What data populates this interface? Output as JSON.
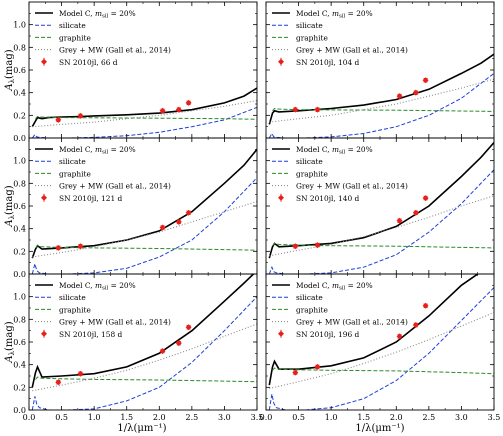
{
  "figure": {
    "xlabel": "1/λ(μm⁻¹)",
    "ylabel": "A",
    "ylabel_sub": "λ",
    "ylabel_unit": "(mag)",
    "xticks": [
      "0.0",
      "0.5",
      "1.0",
      "1.5",
      "2.0",
      "2.5",
      "3.0",
      "3.5"
    ],
    "yticks": [
      "0.0",
      "0.2",
      "0.4",
      "0.6",
      "0.8",
      "1.0"
    ],
    "legend": {
      "model": "Model C, ",
      "model_m": "m",
      "model_sub": "sil",
      "model_tail": " = 20%",
      "silicate": "silicate",
      "graphite": "graphite",
      "grey": "Grey + MW (Gall et al., 2014)"
    },
    "colors": {
      "model": "#000000",
      "silicate": "#1f3fd8",
      "graphite": "#2a8a2a",
      "grey": "#8a8a8a",
      "data": "#e8201a"
    }
  },
  "chart_data": [
    {
      "type": "line",
      "epoch_label": "SN 2010jl, 66 d",
      "xlim": [
        0,
        3.5
      ],
      "ylim": [
        0,
        1.2
      ],
      "series": [
        {
          "name": "Model C, m_sil = 20%",
          "x": [
            0.05,
            0.1,
            0.13,
            0.2,
            0.3,
            0.5,
            0.8,
            1.0,
            1.5,
            2.0,
            2.5,
            3.0,
            3.3,
            3.5
          ],
          "y": [
            0.1,
            0.15,
            0.18,
            0.17,
            0.18,
            0.185,
            0.19,
            0.195,
            0.205,
            0.22,
            0.25,
            0.31,
            0.37,
            0.44
          ]
        },
        {
          "name": "silicate",
          "x": [
            0.05,
            0.09,
            0.12,
            0.16,
            0.3,
            0.6,
            1.0,
            1.5,
            2.0,
            2.5,
            3.0,
            3.5
          ],
          "y": [
            0.0,
            0.03,
            0.01,
            0.005,
            0.0,
            0.0,
            0.005,
            0.02,
            0.05,
            0.1,
            0.16,
            0.27
          ]
        },
        {
          "name": "graphite",
          "x": [
            0.1,
            0.13,
            0.2,
            0.5,
            1.0,
            2.0,
            3.0,
            3.5
          ],
          "y": [
            0.17,
            0.19,
            0.185,
            0.18,
            0.178,
            0.175,
            0.17,
            0.165
          ]
        },
        {
          "name": "Grey + MW (Gall et al., 2014)",
          "x": [
            0.05,
            0.5,
            1.0,
            1.5,
            2.0,
            2.5,
            3.0,
            3.5
          ],
          "y": [
            0.1,
            0.12,
            0.14,
            0.17,
            0.2,
            0.24,
            0.28,
            0.33
          ]
        }
      ],
      "points": {
        "x": [
          0.45,
          0.79,
          2.05,
          2.3,
          2.45
        ],
        "y": [
          0.16,
          0.195,
          0.24,
          0.25,
          0.31
        ],
        "yerr": [
          0.015,
          0.015,
          0.015,
          0.015,
          0.015
        ]
      }
    },
    {
      "type": "line",
      "epoch_label": "SN 2010jl, 104 d",
      "xlim": [
        0,
        3.5
      ],
      "ylim": [
        0,
        1.2
      ],
      "series": [
        {
          "name": "Model C, m_sil = 20%",
          "x": [
            0.05,
            0.1,
            0.13,
            0.2,
            0.5,
            1.0,
            1.5,
            2.0,
            2.5,
            3.0,
            3.3,
            3.5
          ],
          "y": [
            0.12,
            0.22,
            0.24,
            0.23,
            0.24,
            0.26,
            0.29,
            0.34,
            0.43,
            0.57,
            0.66,
            0.74
          ]
        },
        {
          "name": "silicate",
          "x": [
            0.05,
            0.09,
            0.12,
            0.16,
            0.3,
            0.6,
            1.0,
            1.5,
            2.0,
            2.5,
            3.0,
            3.5
          ],
          "y": [
            0.0,
            0.04,
            0.01,
            0.005,
            0.0,
            0.0,
            0.01,
            0.04,
            0.1,
            0.2,
            0.35,
            0.57
          ]
        },
        {
          "name": "graphite",
          "x": [
            0.1,
            0.13,
            0.2,
            0.5,
            1.0,
            2.0,
            3.0,
            3.5
          ],
          "y": [
            0.24,
            0.26,
            0.255,
            0.25,
            0.248,
            0.245,
            0.238,
            0.235
          ]
        },
        {
          "name": "Grey + MW (Gall et al., 2014)",
          "x": [
            0.05,
            0.5,
            1.0,
            1.5,
            2.0,
            2.5,
            3.0,
            3.5
          ],
          "y": [
            0.14,
            0.17,
            0.2,
            0.25,
            0.3,
            0.37,
            0.44,
            0.52
          ]
        }
      ],
      "points": {
        "x": [
          0.45,
          0.79,
          2.05,
          2.3,
          2.45
        ],
        "y": [
          0.25,
          0.25,
          0.37,
          0.4,
          0.51
        ],
        "yerr": [
          0.015,
          0.015,
          0.015,
          0.015,
          0.015
        ]
      }
    },
    {
      "type": "line",
      "epoch_label": "SN 2010jl, 121 d",
      "xlim": [
        0,
        3.5
      ],
      "ylim": [
        0,
        1.2
      ],
      "series": [
        {
          "name": "Model C, m_sil = 20%",
          "x": [
            0.05,
            0.1,
            0.13,
            0.2,
            0.5,
            1.0,
            1.5,
            2.0,
            2.5,
            3.0,
            3.3,
            3.5
          ],
          "y": [
            0.14,
            0.22,
            0.25,
            0.22,
            0.23,
            0.25,
            0.3,
            0.38,
            0.55,
            0.8,
            0.96,
            1.1
          ]
        },
        {
          "name": "silicate",
          "x": [
            0.05,
            0.09,
            0.12,
            0.16,
            0.3,
            0.6,
            1.0,
            1.5,
            2.0,
            2.5,
            3.0,
            3.5
          ],
          "y": [
            0.0,
            0.09,
            0.03,
            0.01,
            0.0,
            0.0,
            0.01,
            0.05,
            0.15,
            0.3,
            0.55,
            0.85
          ]
        },
        {
          "name": "graphite",
          "x": [
            0.1,
            0.13,
            0.2,
            0.5,
            1.0,
            2.0,
            3.0,
            3.5
          ],
          "y": [
            0.23,
            0.25,
            0.24,
            0.235,
            0.23,
            0.225,
            0.215,
            0.21
          ]
        },
        {
          "name": "Grey + MW (Gall et al., 2014)",
          "x": [
            0.05,
            0.5,
            1.0,
            1.5,
            2.0,
            2.5,
            3.0,
            3.5
          ],
          "y": [
            0.15,
            0.19,
            0.24,
            0.3,
            0.37,
            0.46,
            0.55,
            0.64
          ]
        }
      ],
      "points": {
        "x": [
          0.45,
          0.79,
          2.05,
          2.3,
          2.45
        ],
        "y": [
          0.23,
          0.245,
          0.41,
          0.46,
          0.54
        ],
        "yerr": [
          0.015,
          0.015,
          0.015,
          0.015,
          0.015
        ]
      }
    },
    {
      "type": "line",
      "epoch_label": "SN 2010jl, 140 d",
      "xlim": [
        0,
        3.5
      ],
      "ylim": [
        0,
        1.2
      ],
      "series": [
        {
          "name": "Model C, m_sil = 20%",
          "x": [
            0.05,
            0.1,
            0.13,
            0.2,
            0.5,
            1.0,
            1.5,
            2.0,
            2.5,
            3.0,
            3.3,
            3.5
          ],
          "y": [
            0.14,
            0.24,
            0.27,
            0.24,
            0.25,
            0.27,
            0.32,
            0.42,
            0.6,
            0.86,
            1.03,
            1.16
          ]
        },
        {
          "name": "silicate",
          "x": [
            0.05,
            0.09,
            0.12,
            0.16,
            0.3,
            0.6,
            1.0,
            1.5,
            2.0,
            2.5,
            3.0,
            3.5
          ],
          "y": [
            0.0,
            0.06,
            0.02,
            0.01,
            0.0,
            0.0,
            0.01,
            0.06,
            0.17,
            0.37,
            0.62,
            0.92
          ]
        },
        {
          "name": "graphite",
          "x": [
            0.1,
            0.13,
            0.2,
            0.5,
            1.0,
            2.0,
            3.0,
            3.5
          ],
          "y": [
            0.25,
            0.27,
            0.26,
            0.255,
            0.25,
            0.245,
            0.235,
            0.23
          ]
        },
        {
          "name": "Grey + MW (Gall et al., 2014)",
          "x": [
            0.05,
            0.5,
            1.0,
            1.5,
            2.0,
            2.5,
            3.0,
            3.5
          ],
          "y": [
            0.16,
            0.21,
            0.26,
            0.33,
            0.41,
            0.5,
            0.6,
            0.69
          ]
        }
      ],
      "points": {
        "x": [
          0.45,
          0.79,
          2.05,
          2.3,
          2.45
        ],
        "y": [
          0.245,
          0.255,
          0.47,
          0.54,
          0.67
        ],
        "yerr": [
          0.015,
          0.015,
          0.015,
          0.015,
          0.015
        ]
      }
    },
    {
      "type": "line",
      "epoch_label": "SN 2010jl, 158 d",
      "xlim": [
        0,
        3.5
      ],
      "ylim": [
        0,
        1.2
      ],
      "series": [
        {
          "name": "Model C, m_sil = 20%",
          "x": [
            0.05,
            0.1,
            0.13,
            0.2,
            0.5,
            1.0,
            1.5,
            2.0,
            2.5,
            3.0,
            3.3,
            3.5
          ],
          "y": [
            0.2,
            0.33,
            0.38,
            0.29,
            0.3,
            0.32,
            0.38,
            0.5,
            0.7,
            0.96,
            1.12,
            1.23
          ]
        },
        {
          "name": "silicate",
          "x": [
            0.05,
            0.09,
            0.12,
            0.16,
            0.3,
            0.6,
            1.0,
            1.5,
            2.0,
            2.5,
            3.0,
            3.5
          ],
          "y": [
            0.0,
            0.12,
            0.05,
            0.02,
            0.0,
            0.0,
            0.01,
            0.08,
            0.2,
            0.42,
            0.7,
            1.0
          ]
        },
        {
          "name": "graphite",
          "x": [
            0.1,
            0.13,
            0.2,
            0.5,
            1.0,
            2.0,
            3.0,
            3.5
          ],
          "y": [
            0.27,
            0.29,
            0.28,
            0.275,
            0.27,
            0.265,
            0.255,
            0.25
          ]
        },
        {
          "name": "Grey + MW (Gall et al., 2014)",
          "x": [
            0.05,
            0.5,
            1.0,
            1.5,
            2.0,
            2.5,
            3.0,
            3.5
          ],
          "y": [
            0.17,
            0.22,
            0.28,
            0.35,
            0.44,
            0.54,
            0.65,
            0.76
          ]
        }
      ],
      "points": {
        "x": [
          0.45,
          0.79,
          2.05,
          2.3,
          2.45
        ],
        "y": [
          0.245,
          0.32,
          0.52,
          0.59,
          0.73
        ],
        "yerr": [
          0.015,
          0.015,
          0.015,
          0.015,
          0.015
        ]
      }
    },
    {
      "type": "line",
      "epoch_label": "SN 2010jl, 196 d",
      "xlim": [
        0,
        3.5
      ],
      "ylim": [
        0,
        1.2
      ],
      "series": [
        {
          "name": "Model C, m_sil = 20%",
          "x": [
            0.05,
            0.1,
            0.13,
            0.2,
            0.5,
            1.0,
            1.5,
            2.0,
            2.5,
            3.0,
            3.3,
            3.5
          ],
          "y": [
            0.22,
            0.38,
            0.43,
            0.36,
            0.36,
            0.39,
            0.46,
            0.6,
            0.83,
            1.1,
            1.22,
            1.3
          ]
        },
        {
          "name": "silicate",
          "x": [
            0.05,
            0.09,
            0.12,
            0.16,
            0.3,
            0.6,
            1.0,
            1.5,
            2.0,
            2.5,
            3.0,
            3.5
          ],
          "y": [
            0.0,
            0.14,
            0.06,
            0.02,
            0.0,
            0.0,
            0.02,
            0.1,
            0.26,
            0.5,
            0.79,
            1.08
          ]
        },
        {
          "name": "graphite",
          "x": [
            0.1,
            0.13,
            0.2,
            0.5,
            1.0,
            2.0,
            3.0,
            3.5
          ],
          "y": [
            0.35,
            0.37,
            0.36,
            0.355,
            0.35,
            0.345,
            0.33,
            0.32
          ]
        },
        {
          "name": "Grey + MW (Gall et al., 2014)",
          "x": [
            0.05,
            0.5,
            1.0,
            1.5,
            2.0,
            2.5,
            3.0,
            3.5
          ],
          "y": [
            0.19,
            0.25,
            0.32,
            0.41,
            0.51,
            0.62,
            0.74,
            0.86
          ]
        }
      ],
      "points": {
        "x": [
          0.45,
          0.79,
          2.05,
          2.3,
          2.45
        ],
        "y": [
          0.33,
          0.38,
          0.65,
          0.75,
          0.92
        ],
        "yerr": [
          0.015,
          0.015,
          0.015,
          0.015,
          0.015
        ]
      }
    }
  ]
}
